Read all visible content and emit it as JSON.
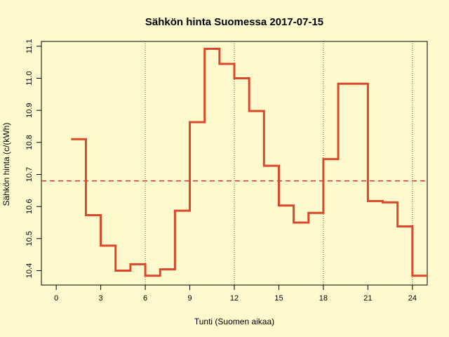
{
  "chart_data": {
    "type": "line",
    "step": true,
    "title": "Sähkön hinta Suomessa 2017-07-15",
    "xlabel": "Tunti (Suomen aikaa)",
    "ylabel": "Sähkön hinta (c/(kWh)",
    "xlim": [
      -1,
      25
    ],
    "ylim": [
      10.355,
      11.115
    ],
    "x_ticks": [
      0,
      3,
      6,
      9,
      12,
      15,
      18,
      21,
      24
    ],
    "y_ticks": [
      10.4,
      10.5,
      10.6,
      10.7,
      10.8,
      10.9,
      11.0,
      11.1
    ],
    "y_tick_labels": [
      "10.4",
      "10.5",
      "10.6",
      "10.7",
      "10.8",
      "10.9",
      "11.0",
      "11.1"
    ],
    "vlines": [
      6,
      12,
      18,
      24
    ],
    "mean_line": 10.68,
    "series": [
      {
        "x": [
          1,
          2,
          3,
          4,
          5,
          6,
          7,
          8,
          9,
          10,
          11,
          12,
          13,
          14,
          15,
          16,
          17,
          18,
          19,
          20,
          21,
          22,
          23,
          24,
          25
        ],
        "values": [
          10.81,
          10.573,
          10.478,
          10.4,
          10.42,
          10.384,
          10.404,
          10.587,
          10.863,
          11.092,
          11.045,
          11.0,
          10.898,
          10.727,
          10.603,
          10.55,
          10.58,
          10.748,
          10.983,
          10.983,
          10.617,
          10.613,
          10.538,
          10.384,
          10.384
        ]
      }
    ],
    "colors": {
      "line": "#D9482B",
      "mean": "#E03030",
      "background": "#FFFACD",
      "vline": "#555555"
    }
  }
}
